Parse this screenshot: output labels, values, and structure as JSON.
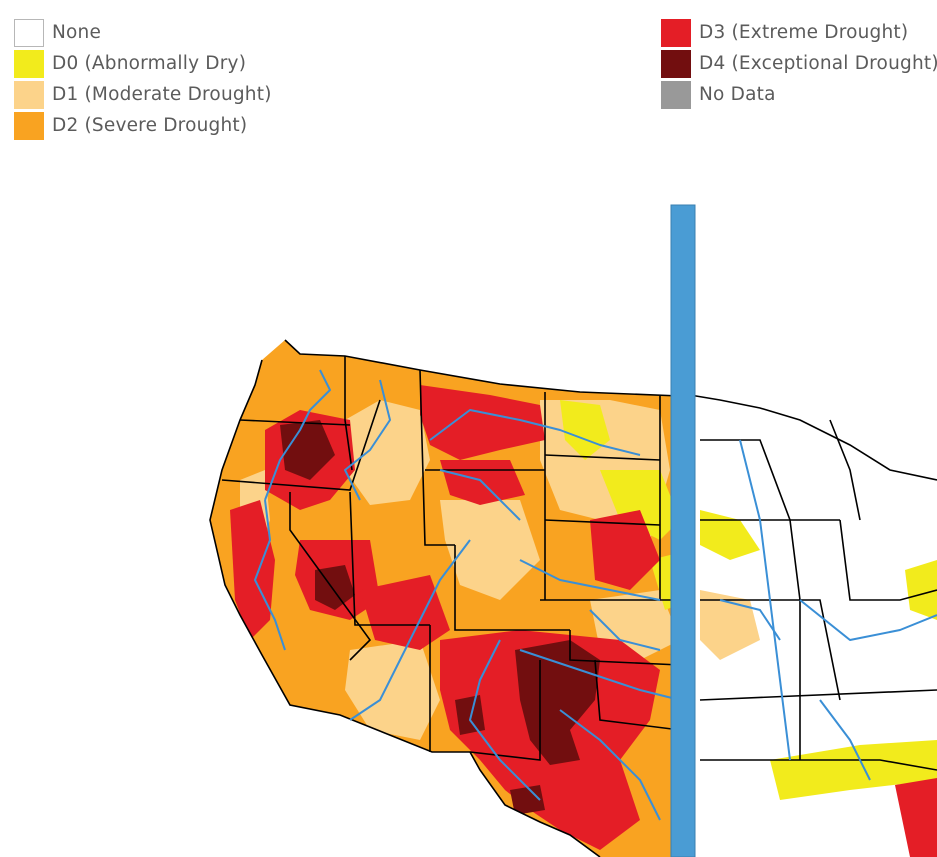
{
  "legend": {
    "items": [
      {
        "label": "None",
        "color": "#ffffff"
      },
      {
        "label": "D0 (Abnormally Dry)",
        "color": "#f2eb1c"
      },
      {
        "label": "D1 (Moderate Drought)",
        "color": "#fcd38a"
      },
      {
        "label": "D2 (Severe Drought)",
        "color": "#f9a321"
      },
      {
        "label": "D3 (Extreme Drought)",
        "color": "#e41e26"
      },
      {
        "label": "D4 (Exceptional Drought)",
        "color": "#720e0f"
      },
      {
        "label": "No Data",
        "color": "#999999"
      }
    ]
  },
  "map": {
    "colors": {
      "river": "#3a8fd6",
      "divider": "#4a9cd4",
      "border": "#000000",
      "none": "#ffffff",
      "d0": "#f2eb1c",
      "d1": "#fcd38a",
      "d2": "#f9a321",
      "d3": "#e41e26",
      "d4": "#720e0f"
    }
  }
}
